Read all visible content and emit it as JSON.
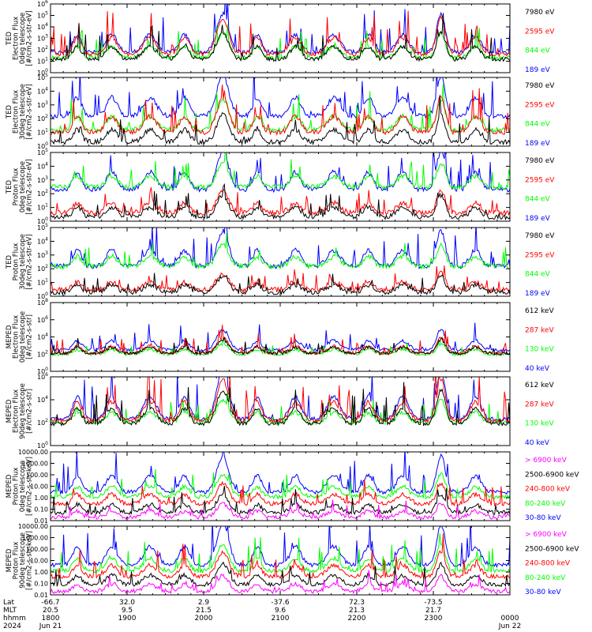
{
  "colors": {
    "blue": "#0000ff",
    "red": "#ff0000",
    "green": "#00ff00",
    "black": "#000000",
    "magenta": "#ff00ff"
  },
  "chart_data": [
    {
      "type": "line",
      "ylabel_lines": [
        "TED",
        "Electron Flux",
        "0deg telescope",
        "[#/cm2-s-str-eV]"
      ],
      "yscale": "log",
      "ylim": [
        1,
        1000000
      ],
      "yticks": [
        "10^0",
        "10^1",
        "10^2",
        "10^3",
        "10^4",
        "10^5",
        "10^6"
      ],
      "series": [
        {
          "name": "7980 eV",
          "color": "#000000",
          "base": 15,
          "amp": 1.2
        },
        {
          "name": "2595 eV",
          "color": "#ff0000",
          "base": 40,
          "amp": 1.6
        },
        {
          "name": "844 eV",
          "color": "#00ff00",
          "base": 20,
          "amp": 1.1
        },
        {
          "name": "189 eV",
          "color": "#0000ff",
          "base": 60,
          "amp": 1.7
        }
      ]
    },
    {
      "type": "line",
      "ylabel_lines": [
        "TED",
        "Electron Flux",
        "30deg telescope",
        "[#/cm2-s-str-eV]"
      ],
      "yscale": "log",
      "ylim": [
        1,
        100000
      ],
      "yticks": [
        "10^0",
        "10^1",
        "10^2",
        "10^3",
        "10^4",
        "10^5"
      ],
      "series": [
        {
          "name": "7980 eV",
          "color": "#000000",
          "base": 2,
          "amp": 1.0
        },
        {
          "name": "2595 eV",
          "color": "#ff0000",
          "base": 10,
          "amp": 1.3
        },
        {
          "name": "844 eV",
          "color": "#00ff00",
          "base": 15,
          "amp": 1.1
        },
        {
          "name": "189 eV",
          "color": "#0000ff",
          "base": 150,
          "amp": 1.5
        }
      ]
    },
    {
      "type": "line",
      "ylabel_lines": [
        "TED",
        "Proton Flux",
        "0deg telescope",
        "[#/cm2-s-str-eV]"
      ],
      "yscale": "log",
      "ylim": [
        1,
        100000
      ],
      "yticks": [
        "10^0",
        "10^1",
        "10^2",
        "10^3",
        "10^4",
        "10^5"
      ],
      "series": [
        {
          "name": "7980 eV",
          "color": "#000000",
          "base": 2,
          "amp": 0.8
        },
        {
          "name": "2595 eV",
          "color": "#ff0000",
          "base": 4,
          "amp": 0.8
        },
        {
          "name": "844 eV",
          "color": "#00ff00",
          "base": 300,
          "amp": 0.9
        },
        {
          "name": "189 eV",
          "color": "#0000ff",
          "base": 200,
          "amp": 1.4
        }
      ]
    },
    {
      "type": "line",
      "ylabel_lines": [
        "TED",
        "Proton Flux",
        "30deg telescope",
        "[#/cm2-s-str-eV]"
      ],
      "yscale": "log",
      "ylim": [
        1,
        100000
      ],
      "yticks": [
        "10^0",
        "10^1",
        "10^2",
        "10^3",
        "10^4",
        "10^5"
      ],
      "series": [
        {
          "name": "7980 eV",
          "color": "#000000",
          "base": 2,
          "amp": 0.6
        },
        {
          "name": "2595 eV",
          "color": "#ff0000",
          "base": 3,
          "amp": 0.6
        },
        {
          "name": "844 eV",
          "color": "#00ff00",
          "base": 150,
          "amp": 0.8
        },
        {
          "name": "189 eV",
          "color": "#0000ff",
          "base": 150,
          "amp": 1.3
        }
      ]
    },
    {
      "type": "line",
      "ylabel_lines": [
        "MEPED",
        "Electron Flux",
        "0deg telescope",
        "[#/cm2-s-str]"
      ],
      "yscale": "log",
      "ylim": [
        1,
        100000000
      ],
      "yticks": [
        "10^0",
        "10^2",
        "10^4",
        "10^6",
        "10^8"
      ],
      "series": [
        {
          "name": "612 keV",
          "color": "#000000",
          "base": 120,
          "amp": 0.8
        },
        {
          "name": "287 keV",
          "color": "#ff0000",
          "base": 130,
          "amp": 0.9
        },
        {
          "name": "130 keV",
          "color": "#00ff00",
          "base": 100,
          "amp": 0.6
        },
        {
          "name": "40 keV",
          "color": "#0000ff",
          "base": 300,
          "amp": 1.2
        }
      ]
    },
    {
      "type": "line",
      "ylabel_lines": [
        "MEPED",
        "Electron Flux",
        "90deg telescope",
        "[#/cm2-s-str]"
      ],
      "yscale": "log",
      "ylim": [
        1,
        1000000
      ],
      "yticks": [
        "10^0",
        "10^2",
        "10^4",
        "10^6"
      ],
      "series": [
        {
          "name": "612 keV",
          "color": "#000000",
          "base": 80,
          "amp": 1.5
        },
        {
          "name": "287 keV",
          "color": "#ff0000",
          "base": 150,
          "amp": 1.8
        },
        {
          "name": "130 keV",
          "color": "#00ff00",
          "base": 100,
          "amp": 1.0
        },
        {
          "name": "40 keV",
          "color": "#0000ff",
          "base": 200,
          "amp": 2.2
        }
      ]
    },
    {
      "type": "line",
      "ylabel_lines": [
        "MEPED",
        "Proton Flux",
        "0deg telescope",
        "[#/cm2-s-str-keV]"
      ],
      "yscale": "log",
      "ylim": [
        0.01,
        10000
      ],
      "yticks": [
        "0.01",
        "0.10",
        "1.00",
        "10.00",
        "100.00",
        "1000.00",
        "10000.00"
      ],
      "series": [
        {
          "name": "> 6900 keV",
          "color": "#ff00ff",
          "base": 0.02,
          "amp": 0.6
        },
        {
          "name": "2500-6900 keV",
          "color": "#000000",
          "base": 0.05,
          "amp": 0.8
        },
        {
          "name": "240-800 keV",
          "color": "#ff0000",
          "base": 0.3,
          "amp": 0.9
        },
        {
          "name": "80-240 keV",
          "color": "#00ff00",
          "base": 1.2,
          "amp": 1.0
        },
        {
          "name": "30-80 keV",
          "color": "#0000ff",
          "base": 3,
          "amp": 1.6
        }
      ]
    },
    {
      "type": "line",
      "ylabel_lines": [
        "MEPED",
        "Proton Flux",
        "90deg telescope",
        "[#/cm2-s-str-keV]"
      ],
      "yscale": "log",
      "ylim": [
        0.01,
        10000
      ],
      "yticks": [
        "0.01",
        "0.10",
        "1.00",
        "10.00",
        "100.00",
        "1000.00",
        "10000.00"
      ],
      "series": [
        {
          "name": "> 6900 keV",
          "color": "#ff00ff",
          "base": 0.02,
          "amp": 0.7
        },
        {
          "name": "2500-6900 keV",
          "color": "#000000",
          "base": 0.08,
          "amp": 0.9
        },
        {
          "name": "240-800 keV",
          "color": "#ff0000",
          "base": 0.4,
          "amp": 1.1
        },
        {
          "name": "80-240 keV",
          "color": "#00ff00",
          "base": 1.2,
          "amp": 1.2
        },
        {
          "name": "30-80 keV",
          "color": "#0000ff",
          "base": 4,
          "amp": 1.8
        }
      ]
    }
  ],
  "xaxis": {
    "row_labels": [
      "Lat",
      "MLT",
      "hhmm",
      "2024"
    ],
    "columns": [
      {
        "lat": "-66.7",
        "mlt": "20.5",
        "hhmm": "1800",
        "date": "Jun 21"
      },
      {
        "lat": "32.0",
        "mlt": "9.5",
        "hhmm": "1900",
        "date": ""
      },
      {
        "lat": "2.9",
        "mlt": "21.5",
        "hhmm": "2000",
        "date": ""
      },
      {
        "lat": "-37.6",
        "mlt": "9.6",
        "hhmm": "2100",
        "date": ""
      },
      {
        "lat": "72.3",
        "mlt": "21.3",
        "hhmm": "2200",
        "date": ""
      },
      {
        "lat": "-73.5",
        "mlt": "21.7",
        "hhmm": "2300",
        "date": ""
      },
      {
        "lat": "",
        "mlt": "",
        "hhmm": "0000",
        "date": "Jun 22"
      }
    ]
  }
}
